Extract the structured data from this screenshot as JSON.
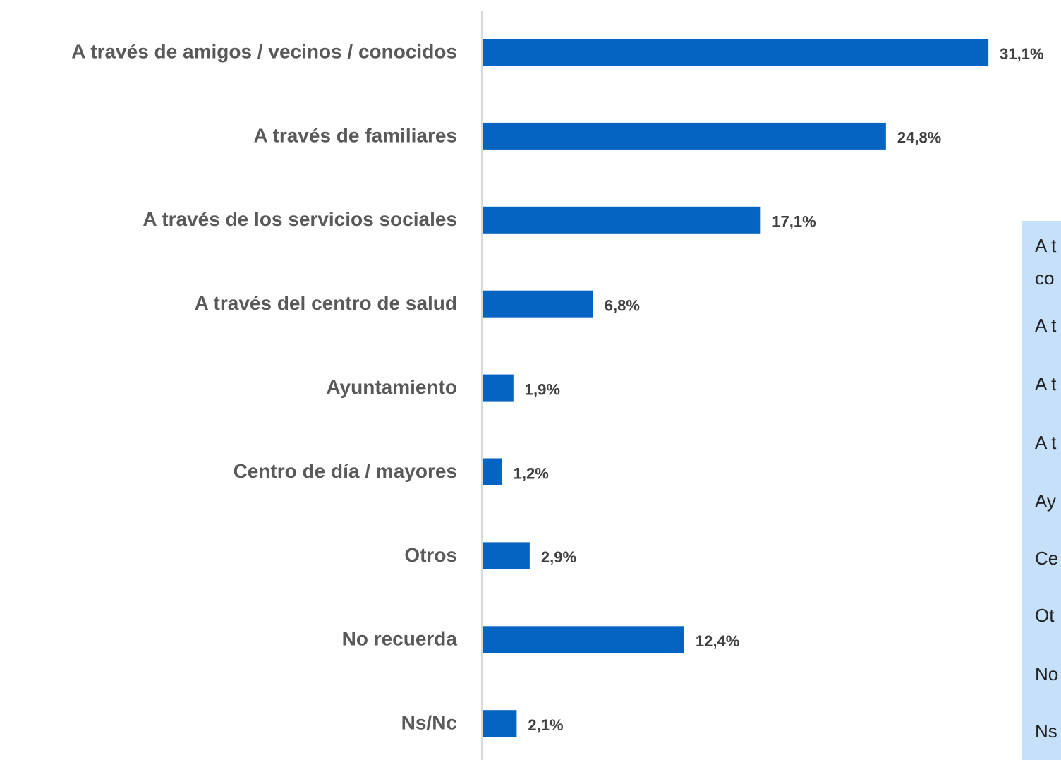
{
  "chart_data": {
    "type": "bar",
    "orientation": "horizontal",
    "categories": [
      "A través de amigos / vecinos / conocidos",
      "A través de familiares",
      "A través de los servicios sociales",
      "A través del centro de salud",
      "Ayuntamiento",
      "Centro de día / mayores",
      "Otros",
      "No recuerda",
      "Ns/Nc"
    ],
    "values": [
      31.1,
      24.8,
      17.1,
      6.8,
      1.9,
      1.2,
      2.9,
      12.4,
      2.1
    ],
    "value_labels": [
      "31,1%",
      "24,8%",
      "17,1%",
      "6,8%",
      "1,9%",
      "1,2%",
      "2,9%",
      "12,4%",
      "2,1%"
    ],
    "color": "#0563c1",
    "xlim": [
      0,
      35.5
    ],
    "panel_lines": [
      "A t",
      "co",
      "A t",
      "A t",
      "A t",
      "Ay",
      "Ce",
      "Ot",
      "No",
      "Ns"
    ]
  }
}
